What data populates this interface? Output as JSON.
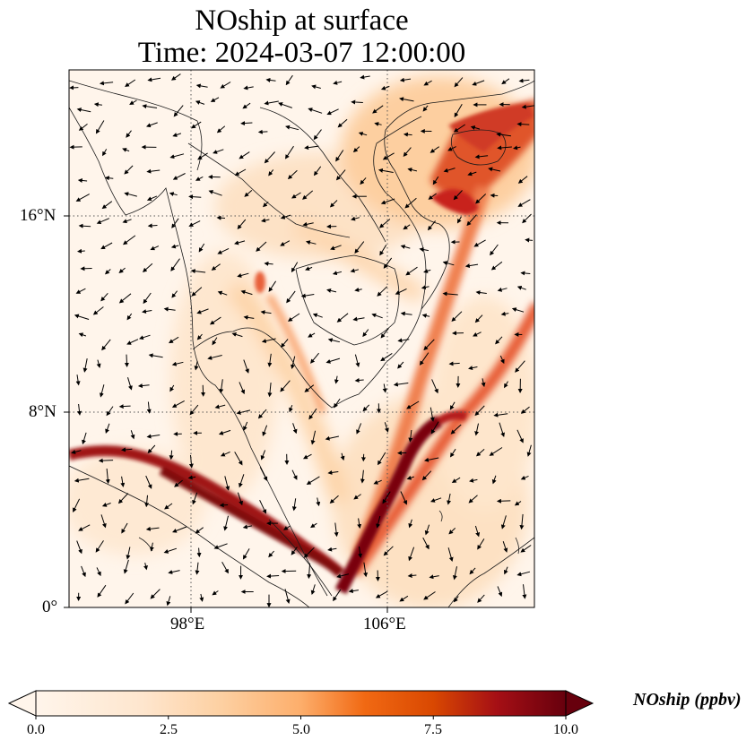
{
  "title": {
    "line1": "NOship at surface",
    "line2": "Time: 2024-03-07 12:00:00"
  },
  "map": {
    "lon_range": [
      93,
      112
    ],
    "lat_range": [
      0,
      22
    ],
    "lon_ticks": [
      {
        "lon": 98,
        "label": "98°E"
      },
      {
        "lon": 106,
        "label": "106°E"
      }
    ],
    "lat_ticks": [
      {
        "lat": 16,
        "label": "16°N"
      },
      {
        "lat": 8,
        "label": "8°N"
      },
      {
        "lat": 0,
        "label": "0°"
      }
    ],
    "gridlines": "dotted",
    "field_colormap": [
      "#fff5eb",
      "#fdd0a2",
      "#fd8d3c",
      "#d94801",
      "#a50f15",
      "#67000d"
    ],
    "field_description_values": {
      "shipping_lane_peak_ppbv": 10.0,
      "gulf_of_tonkin_peak_ppbv": 8.0
    }
  },
  "colorbar": {
    "min": 0.0,
    "max": 10.0,
    "extend": "both",
    "ticks": [
      "0.0",
      "2.5",
      "5.0",
      "7.5",
      "10.0"
    ],
    "tick_values": [
      0,
      2.5,
      5,
      7.5,
      10
    ],
    "label": "NOship (ppbv)"
  }
}
